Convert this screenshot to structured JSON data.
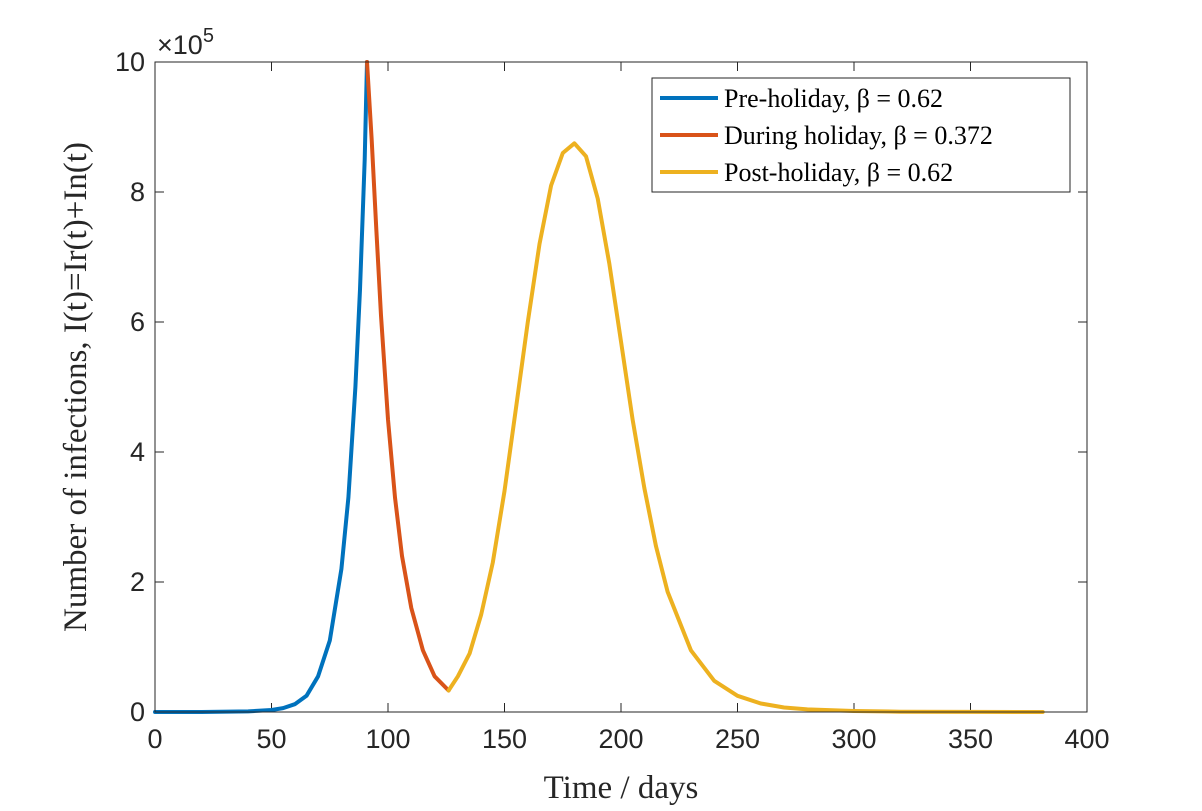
{
  "chart_data": {
    "type": "line",
    "title": "",
    "xlabel": "Time / days",
    "ylabel": "Number of infections, I(t)=Ir(t)+In(t)",
    "xlim": [
      0,
      400
    ],
    "ylim": [
      0,
      1000000
    ],
    "x_ticks": [
      "0",
      "50",
      "100",
      "150",
      "200",
      "250",
      "300",
      "350",
      "400"
    ],
    "y_ticks": [
      "0",
      "2",
      "4",
      "6",
      "8",
      "10"
    ],
    "y_multiplier": {
      "base": "×10",
      "exponent": "5"
    },
    "grid": false,
    "legend_position": "top-right",
    "series": [
      {
        "name": "Pre-holiday, β = 0.62",
        "color": "#0072BD",
        "x": [
          0,
          20,
          40,
          50,
          55,
          60,
          65,
          70,
          75,
          80,
          83,
          86,
          88,
          90,
          91
        ],
        "y": [
          0,
          0,
          1000,
          3000,
          6000,
          12000,
          25000,
          55000,
          110000,
          220000,
          330000,
          500000,
          650000,
          850000,
          1000000
        ]
      },
      {
        "name": "During holiday, β = 0.372",
        "color": "#D95319",
        "x": [
          91,
          93,
          95,
          97,
          100,
          103,
          106,
          110,
          115,
          120,
          126
        ],
        "y": [
          1000000,
          880000,
          740000,
          610000,
          450000,
          330000,
          240000,
          160000,
          95000,
          55000,
          33000
        ]
      },
      {
        "name": "Post-holiday, β = 0.62",
        "color": "#EDB120",
        "x": [
          126,
          130,
          135,
          140,
          145,
          150,
          155,
          160,
          165,
          170,
          175,
          180,
          185,
          190,
          195,
          200,
          205,
          210,
          215,
          220,
          230,
          240,
          250,
          260,
          270,
          280,
          300,
          320,
          350,
          381
        ],
        "y": [
          33000,
          55000,
          90000,
          150000,
          230000,
          340000,
          470000,
          600000,
          720000,
          810000,
          860000,
          875000,
          855000,
          790000,
          690000,
          570000,
          450000,
          345000,
          255000,
          185000,
          95000,
          48000,
          25000,
          13000,
          7000,
          4000,
          1500,
          500,
          100,
          20
        ]
      }
    ]
  }
}
